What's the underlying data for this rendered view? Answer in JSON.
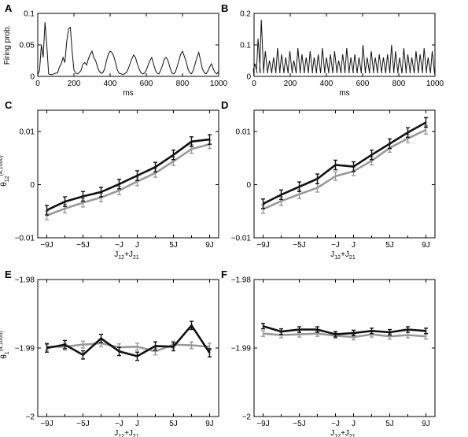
{
  "chart_data": [
    {
      "panel": "A",
      "type": "line",
      "ylabel": "Firing prob.",
      "xlabel": "ms",
      "xlim": [
        0,
        1000
      ],
      "ylim": [
        0,
        0.1
      ],
      "xticks": [
        "0",
        "200",
        "400",
        "600",
        "800",
        "1000"
      ],
      "yticks": [
        "0",
        "0.05",
        "0.1"
      ],
      "x": [
        0,
        10,
        20,
        30,
        40,
        50,
        60,
        70,
        80,
        90,
        100,
        110,
        120,
        130,
        140,
        150,
        160,
        170,
        180,
        190,
        200,
        210,
        220,
        230,
        240,
        250,
        260,
        270,
        280,
        290,
        300,
        310,
        320,
        330,
        340,
        350,
        360,
        370,
        380,
        390,
        400,
        410,
        420,
        430,
        440,
        450,
        460,
        470,
        480,
        490,
        500,
        510,
        520,
        530,
        540,
        550,
        560,
        570,
        580,
        590,
        600,
        610,
        620,
        630,
        640,
        650,
        660,
        670,
        680,
        690,
        700,
        710,
        720,
        730,
        740,
        750,
        760,
        770,
        780,
        790,
        800,
        810,
        820,
        830,
        840,
        850,
        860,
        870,
        880,
        890,
        900,
        910,
        920,
        930,
        940,
        950,
        960,
        970,
        980,
        990,
        1000
      ],
      "values": [
        0.002,
        0.01,
        0.05,
        0.03,
        0.086,
        0.05,
        0.004,
        0.003,
        0.003,
        0.004,
        0.005,
        0.006,
        0.015,
        0.02,
        0.03,
        0.022,
        0.055,
        0.075,
        0.078,
        0.04,
        0.01,
        0.005,
        0.004,
        0.006,
        0.01,
        0.02,
        0.022,
        0.018,
        0.028,
        0.035,
        0.04,
        0.03,
        0.025,
        0.015,
        0.008,
        0.005,
        0.006,
        0.012,
        0.025,
        0.035,
        0.04,
        0.038,
        0.032,
        0.022,
        0.01,
        0.005,
        0.004,
        0.003,
        0.004,
        0.006,
        0.012,
        0.02,
        0.028,
        0.034,
        0.03,
        0.02,
        0.012,
        0.006,
        0.004,
        0.005,
        0.01,
        0.018,
        0.025,
        0.03,
        0.02,
        0.01,
        0.005,
        0.004,
        0.01,
        0.018,
        0.028,
        0.03,
        0.025,
        0.015,
        0.006,
        0.004,
        0.006,
        0.015,
        0.025,
        0.035,
        0.04,
        0.032,
        0.024,
        0.012,
        0.006,
        0.004,
        0.01,
        0.02,
        0.03,
        0.038,
        0.025,
        0.012,
        0.006,
        0.004,
        0.008,
        0.015,
        0.02,
        0.012,
        0.006,
        0.004,
        0.008
      ]
    },
    {
      "panel": "B",
      "type": "line",
      "ylabel": "",
      "xlabel": "ms",
      "xlim": [
        0,
        1000
      ],
      "ylim": [
        0,
        0.2
      ],
      "xticks": [
        "0",
        "200",
        "400",
        "600",
        "800",
        "1000"
      ],
      "yticks": [
        "0",
        "0.1",
        "0.2"
      ],
      "spikes": [
        [
          5,
          0.04
        ],
        [
          22,
          0.12
        ],
        [
          40,
          0.18
        ],
        [
          62,
          0.08
        ],
        [
          85,
          0.05
        ],
        [
          108,
          0.06
        ],
        [
          130,
          0.09
        ],
        [
          152,
          0.07
        ],
        [
          175,
          0.06
        ],
        [
          198,
          0.08
        ],
        [
          220,
          0.05
        ],
        [
          242,
          0.09
        ],
        [
          265,
          0.07
        ],
        [
          288,
          0.06
        ],
        [
          310,
          0.08
        ],
        [
          332,
          0.06
        ],
        [
          355,
          0.07
        ],
        [
          378,
          0.09
        ],
        [
          400,
          0.06
        ],
        [
          422,
          0.07
        ],
        [
          445,
          0.08
        ],
        [
          468,
          0.05
        ],
        [
          490,
          0.07
        ],
        [
          512,
          0.09
        ],
        [
          535,
          0.06
        ],
        [
          557,
          0.07
        ],
        [
          580,
          0.06
        ],
        [
          602,
          0.1
        ],
        [
          625,
          0.06
        ],
        [
          648,
          0.08
        ],
        [
          670,
          0.06
        ],
        [
          692,
          0.07
        ],
        [
          715,
          0.06
        ],
        [
          738,
          0.07
        ],
        [
          760,
          0.1
        ],
        [
          782,
          0.08
        ],
        [
          805,
          0.06
        ],
        [
          828,
          0.09
        ],
        [
          850,
          0.07
        ],
        [
          872,
          0.06
        ],
        [
          895,
          0.08
        ],
        [
          918,
          0.07
        ],
        [
          940,
          0.09
        ],
        [
          962,
          0.06
        ],
        [
          985,
          0.08
        ]
      ]
    },
    {
      "panel": "C",
      "type": "line",
      "ylabel": "θ12(4,1000)",
      "xlabel": "J12+J21",
      "xticks": [
        "−9J",
        "−5J",
        "−J",
        "J",
        "5J",
        "9J"
      ],
      "yticks": [
        "0.01",
        "0",
        "−0.01"
      ],
      "xlim": [
        -10,
        10
      ],
      "ylim": [
        -0.01,
        0.014
      ],
      "x": [
        -9,
        -7,
        -5,
        -3,
        -1,
        1,
        3,
        5,
        7,
        9
      ],
      "series": [
        {
          "values": [
            -0.0048,
            -0.0032,
            -0.0022,
            -0.0014,
            0.0001,
            0.0017,
            0.0033,
            0.0056,
            0.0081,
            0.0085
          ],
          "err": [
            0.0009,
            0.0009,
            0.0009,
            0.0009,
            0.0009,
            0.0009,
            0.0009,
            0.0009,
            0.0009,
            0.0009
          ],
          "color": "#111111"
        },
        {
          "values": [
            -0.0058,
            -0.0045,
            -0.0034,
            -0.0024,
            -0.0011,
            0.0006,
            0.0022,
            0.0044,
            0.0067,
            0.0076
          ],
          "err": [
            0.0008,
            0.0008,
            0.0008,
            0.0008,
            0.0008,
            0.0008,
            0.0008,
            0.0008,
            0.0008,
            0.0008
          ],
          "color": "#999999"
        }
      ]
    },
    {
      "panel": "D",
      "type": "line",
      "ylabel": "",
      "xlabel": "J12+J21",
      "xticks": [
        "−9J",
        "−5J",
        "−J",
        "J",
        "5J",
        "9J"
      ],
      "yticks": [
        "0.01",
        "0",
        "−0.01"
      ],
      "xlim": [
        -10,
        10
      ],
      "ylim": [
        -0.01,
        0.014
      ],
      "x": [
        -9,
        -7,
        -5,
        -3,
        -1,
        1,
        3,
        5,
        7,
        9
      ],
      "series": [
        {
          "values": [
            -0.0036,
            -0.0019,
            -0.0004,
            0.0011,
            0.0037,
            0.0034,
            0.0056,
            0.0077,
            0.0098,
            0.0117
          ],
          "err": [
            0.0009,
            0.0009,
            0.0009,
            0.0009,
            0.0009,
            0.0009,
            0.0009,
            0.0009,
            0.0009,
            0.0009
          ],
          "color": "#111111"
        },
        {
          "values": [
            -0.0046,
            -0.0031,
            -0.0018,
            -0.0006,
            0.0016,
            0.0025,
            0.0045,
            0.0069,
            0.0087,
            0.0103
          ],
          "err": [
            0.0008,
            0.0008,
            0.0008,
            0.0008,
            0.0008,
            0.0008,
            0.0008,
            0.0008,
            0.0008,
            0.0008
          ],
          "color": "#999999"
        }
      ]
    },
    {
      "panel": "E",
      "type": "line",
      "ylabel": "θ1(4,1000)",
      "xlabel": "J12+J21",
      "xticks": [
        "−9J",
        "−5J",
        "−J",
        "J",
        "5J",
        "9J"
      ],
      "yticks": [
        "−1.98",
        "−1.99",
        "−2"
      ],
      "xlim": [
        -10,
        10
      ],
      "ylim": [
        -2.0,
        -1.98
      ],
      "x": [
        -9,
        -7,
        -5,
        -3,
        -1,
        1,
        3,
        5,
        7,
        9
      ],
      "series": [
        {
          "values": [
            -1.99,
            -1.9895,
            -1.991,
            -1.9886,
            -1.9905,
            -1.9912,
            -1.9897,
            -1.9898,
            -1.9867,
            -1.9907
          ],
          "err": [
            0.0006,
            0.0006,
            0.0006,
            0.0006,
            0.0006,
            0.0006,
            0.0006,
            0.0006,
            0.0006,
            0.0006
          ],
          "color": "#111111"
        },
        {
          "values": [
            -1.9898,
            -1.9898,
            -1.9895,
            -1.9893,
            -1.9899,
            -1.9898,
            -1.9905,
            -1.9895,
            -1.9896,
            -1.9898
          ],
          "err": [
            0.0005,
            0.0005,
            0.0005,
            0.0005,
            0.0005,
            0.0005,
            0.0005,
            0.0005,
            0.0005,
            0.0005
          ],
          "color": "#999999"
        }
      ]
    },
    {
      "panel": "F",
      "type": "line",
      "ylabel": "",
      "xlabel": "J12+J21",
      "xticks": [
        "−9J",
        "−5J",
        "−J",
        "J",
        "5J",
        "9J"
      ],
      "yticks": [
        "−1.98",
        "−1.99",
        "−2"
      ],
      "xlim": [
        -10,
        10
      ],
      "ylim": [
        -2.0,
        -1.98
      ],
      "x": [
        -9,
        -7,
        -5,
        -3,
        -1,
        1,
        3,
        5,
        7,
        9
      ],
      "series": [
        {
          "values": [
            -1.9868,
            -1.9876,
            -1.9873,
            -1.9873,
            -1.988,
            -1.9878,
            -1.9875,
            -1.9877,
            -1.9873,
            -1.9875
          ],
          "err": [
            0.0004,
            0.0004,
            0.0004,
            0.0004,
            0.0004,
            0.0004,
            0.0004,
            0.0004,
            0.0004,
            0.0004
          ],
          "color": "#111111"
        },
        {
          "values": [
            -1.9879,
            -1.9881,
            -1.988,
            -1.9879,
            -1.9882,
            -1.9884,
            -1.988,
            -1.9883,
            -1.9881,
            -1.9883
          ],
          "err": [
            0.0004,
            0.0004,
            0.0004,
            0.0004,
            0.0004,
            0.0004,
            0.0004,
            0.0004,
            0.0004,
            0.0004
          ],
          "color": "#999999"
        }
      ]
    }
  ]
}
